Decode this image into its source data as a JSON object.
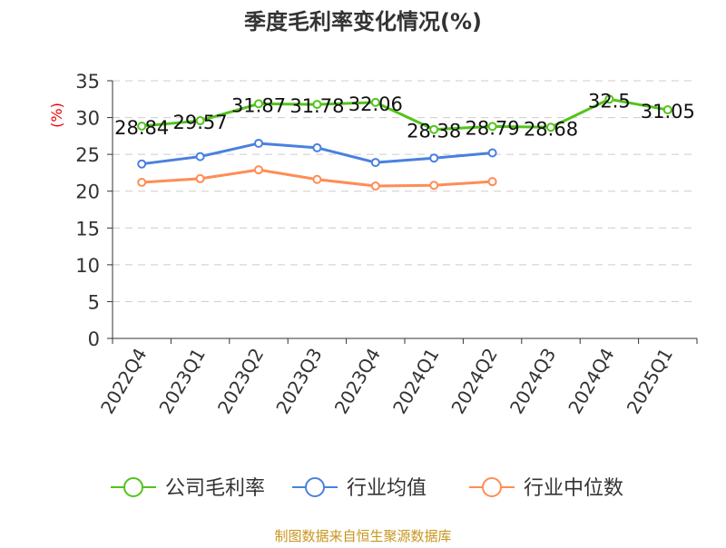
{
  "chart_data": {
    "type": "line",
    "title": "季度毛利率变化情况(%)",
    "ylabel": "(%)",
    "xlabel": "",
    "ylim": [
      0,
      35
    ],
    "yticks": [
      0,
      5,
      10,
      15,
      20,
      25,
      30,
      35
    ],
    "grid": true,
    "legend_placement": "bottom",
    "categories": [
      "2022Q4",
      "2023Q1",
      "2023Q2",
      "2023Q3",
      "2023Q4",
      "2024Q1",
      "2024Q2",
      "2024Q3",
      "2024Q4",
      "2025Q1"
    ],
    "series": [
      {
        "name": "公司毛利率",
        "color": "#52c41a",
        "values": [
          28.84,
          29.57,
          31.87,
          31.78,
          32.06,
          28.38,
          28.79,
          28.68,
          32.5,
          31.05
        ],
        "labels": [
          "28.84",
          "29.57",
          "31.87",
          "31.78",
          "32.06",
          "28.38",
          "28.79",
          "28.68",
          "32.5",
          "31.05"
        ]
      },
      {
        "name": "行业均值",
        "color": "#4a80e0",
        "values": [
          23.7,
          24.7,
          26.5,
          25.9,
          23.9,
          24.5,
          25.2,
          null,
          null,
          null
        ]
      },
      {
        "name": "行业中位数",
        "color": "#ff8c55",
        "values": [
          21.2,
          21.7,
          22.9,
          21.6,
          20.7,
          20.8,
          21.3,
          null,
          null,
          null
        ]
      }
    ]
  },
  "footer": "制图数据来自恒生聚源数据库"
}
